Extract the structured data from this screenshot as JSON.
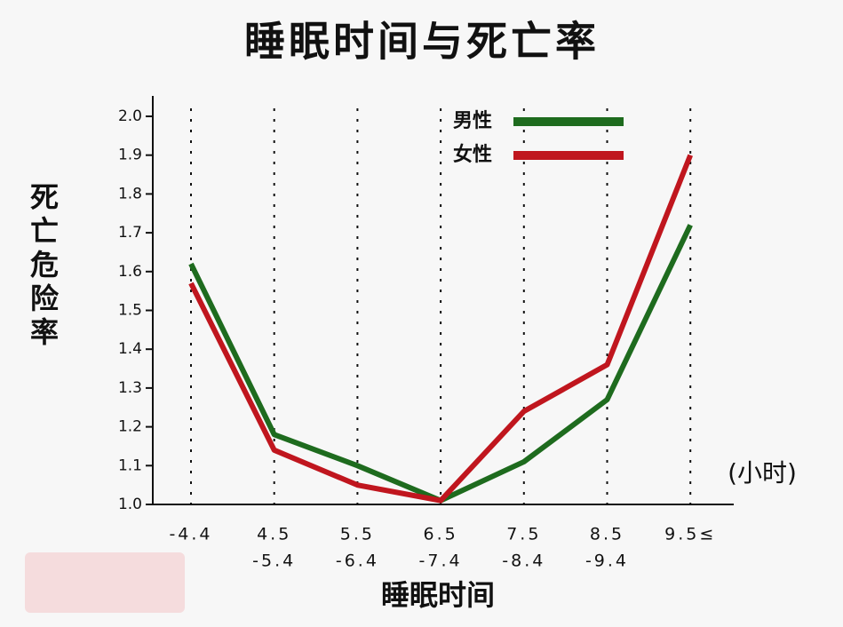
{
  "chart_data": {
    "type": "line",
    "title": "睡眠时间与死亡率",
    "y_label": "死亡危险率",
    "x_label": "睡眠时间",
    "unit": "(小时)",
    "categories": [
      [
        "-4.4"
      ],
      [
        "4.5",
        "-5.4"
      ],
      [
        "5.5",
        "-6.4"
      ],
      [
        "6.5",
        "-7.4"
      ],
      [
        "7.5",
        "-8.4"
      ],
      [
        "8.5",
        "-9.4"
      ],
      [
        "9.5≤"
      ]
    ],
    "series": [
      {
        "name": "男性",
        "color": "#1e6b1e",
        "values": [
          1.62,
          1.18,
          1.1,
          1.01,
          1.11,
          1.27,
          1.72
        ]
      },
      {
        "name": "女性",
        "color": "#c0161e",
        "values": [
          1.57,
          1.14,
          1.05,
          1.01,
          1.24,
          1.36,
          1.9
        ]
      }
    ],
    "ylim": [
      1.0,
      2.0
    ],
    "yticks": [
      {
        "value": 1.0,
        "label": "1.0"
      },
      1.1,
      1.2,
      1.3,
      1.4,
      1.5,
      1.6,
      1.7,
      1.8,
      1.9,
      {
        "value": 2.0,
        "label": "2.0"
      }
    ],
    "grid": true
  }
}
